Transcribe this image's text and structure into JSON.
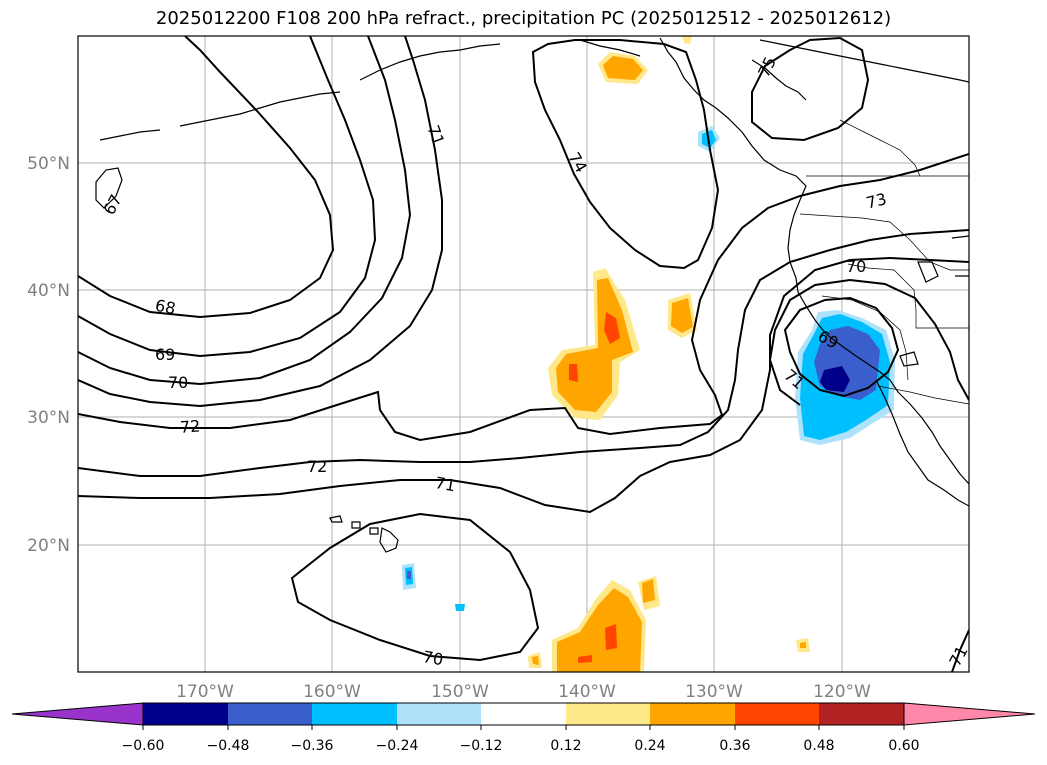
{
  "title": "2025012200 F108 200 hPa refract., precipitation PC (2025012512 - 2025012612)",
  "latitude_labels": [
    "50°N",
    "40°N",
    "30°N",
    "20°N"
  ],
  "longitude_labels": [
    "170°W",
    "160°W",
    "150°W",
    "140°W",
    "130°W",
    "120°W"
  ],
  "contour_labels": [
    "67",
    "68",
    "69",
    "70",
    "72",
    "71",
    "74",
    "75",
    "73",
    "70",
    "72",
    "71",
    "70",
    "69",
    "71",
    "71"
  ],
  "colorbar": {
    "tick_labels": [
      "−0.60",
      "−0.48",
      "−0.36",
      "−0.24",
      "−0.12",
      "0.12",
      "0.24",
      "0.36",
      "0.48",
      "0.60"
    ],
    "colors": [
      "#9933cc",
      "#00008b",
      "#3a5fcd",
      "#00bfff",
      "#aee2fb",
      "#ffffff",
      "#ffe88a",
      "#ffa500",
      "#ff4500",
      "#b22222",
      "#ff88aa"
    ]
  },
  "anomaly_colors": {
    "positive_weak": "#ffe88a",
    "positive_mid": "#ffa500",
    "positive_strong": "#ff4500",
    "negative_weak": "#aee2fb",
    "negative_mid": "#00bfff",
    "negative_strong": "#3a5fcd",
    "negative_max": "#00008b"
  }
}
